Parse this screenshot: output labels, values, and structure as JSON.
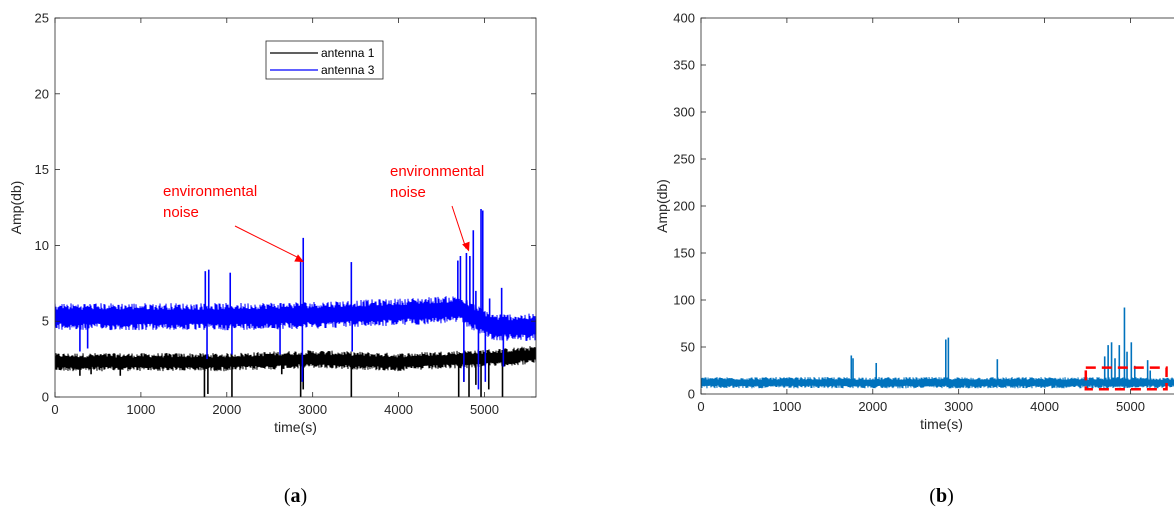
{
  "chart_data": [
    {
      "type": "line",
      "panel_label": "(a)",
      "xlabel": "time(s)",
      "ylabel": "Amp(db)",
      "xlim": [
        0,
        5600
      ],
      "ylim": [
        0,
        25
      ],
      "xticks": [
        0,
        1000,
        2000,
        3000,
        4000,
        5000
      ],
      "yticks": [
        0,
        5,
        10,
        15,
        20,
        25
      ],
      "legend_position": "top-center",
      "series": [
        {
          "name": "antenna 1",
          "color": "#000000",
          "baseline": [
            [
              0,
              2.3
            ],
            [
              2000,
              2.3
            ],
            [
              3000,
              2.5
            ],
            [
              4000,
              2.3
            ],
            [
              5200,
              2.6
            ],
            [
              5600,
              2.8
            ]
          ],
          "noise_band": 0.6,
          "spikes": [
            {
              "x": 290,
              "y": 1.4
            },
            {
              "x": 420,
              "y": 1.5
            },
            {
              "x": 760,
              "y": 1.4
            },
            {
              "x": 1740,
              "y": 0.0
            },
            {
              "x": 1780,
              "y": 0.2
            },
            {
              "x": 2060,
              "y": 0.0
            },
            {
              "x": 2640,
              "y": 1.5
            },
            {
              "x": 2860,
              "y": 0.0
            },
            {
              "x": 2890,
              "y": 0.5
            },
            {
              "x": 3450,
              "y": 0.0
            },
            {
              "x": 4700,
              "y": 0.0
            },
            {
              "x": 4760,
              "y": 1.0
            },
            {
              "x": 4820,
              "y": 0.0
            },
            {
              "x": 4900,
              "y": 0.8
            },
            {
              "x": 4960,
              "y": 0.0
            },
            {
              "x": 5050,
              "y": 0.5
            },
            {
              "x": 5210,
              "y": 0.0
            }
          ]
        },
        {
          "name": "antenna 3",
          "color": "#0000ff",
          "baseline": [
            [
              0,
              5.3
            ],
            [
              2000,
              5.3
            ],
            [
              3000,
              5.4
            ],
            [
              4000,
              5.6
            ],
            [
              4700,
              5.8
            ],
            [
              5100,
              4.6
            ],
            [
              5600,
              4.6
            ]
          ],
          "noise_band": 0.9,
          "spikes": [
            {
              "x": 290,
              "y": 3.0
            },
            {
              "x": 380,
              "y": 3.2
            },
            {
              "x": 1750,
              "y": 8.3
            },
            {
              "x": 1790,
              "y": 8.4
            },
            {
              "x": 1770,
              "y": 2.5
            },
            {
              "x": 2040,
              "y": 8.2
            },
            {
              "x": 2060,
              "y": 2.8
            },
            {
              "x": 2620,
              "y": 2.8
            },
            {
              "x": 2860,
              "y": 9.0
            },
            {
              "x": 2890,
              "y": 10.5
            },
            {
              "x": 2880,
              "y": 1.0
            },
            {
              "x": 3450,
              "y": 8.9
            },
            {
              "x": 3460,
              "y": 3.0
            },
            {
              "x": 4690,
              "y": 9.0
            },
            {
              "x": 4720,
              "y": 9.3
            },
            {
              "x": 4760,
              "y": 1.0
            },
            {
              "x": 4790,
              "y": 9.5
            },
            {
              "x": 4830,
              "y": 9.3
            },
            {
              "x": 4870,
              "y": 11.0
            },
            {
              "x": 4900,
              "y": 7.0
            },
            {
              "x": 4930,
              "y": 0.5
            },
            {
              "x": 4960,
              "y": 12.4
            },
            {
              "x": 4980,
              "y": 12.3
            },
            {
              "x": 5010,
              "y": 1.0
            },
            {
              "x": 5060,
              "y": 6.5
            },
            {
              "x": 5200,
              "y": 7.2
            },
            {
              "x": 5220,
              "y": 2.0
            }
          ]
        }
      ],
      "annotations": [
        {
          "text": [
            "environmental",
            "noise"
          ],
          "target": [
            2900,
            8.9
          ]
        },
        {
          "text": [
            "environmental",
            "noise"
          ],
          "target": [
            4820,
            9.6
          ]
        }
      ]
    },
    {
      "type": "line",
      "panel_label": "(b)",
      "xlabel": "time(s)",
      "ylabel": "Amp(db)",
      "xlim": [
        0,
        5600
      ],
      "ylim": [
        0,
        400
      ],
      "xticks": [
        0,
        1000,
        2000,
        3000,
        4000,
        5000
      ],
      "yticks": [
        0,
        50,
        100,
        150,
        200,
        250,
        300,
        350,
        400
      ],
      "series": [
        {
          "color": "#0072bd",
          "baseline": [
            [
              0,
              12
            ],
            [
              5600,
              12
            ]
          ],
          "noise_band": 6,
          "spikes": [
            {
              "x": 1750,
              "y": 41
            },
            {
              "x": 1770,
              "y": 38
            },
            {
              "x": 2040,
              "y": 33
            },
            {
              "x": 2850,
              "y": 58
            },
            {
              "x": 2880,
              "y": 60
            },
            {
              "x": 3450,
              "y": 37
            },
            {
              "x": 4700,
              "y": 40
            },
            {
              "x": 4740,
              "y": 52
            },
            {
              "x": 4780,
              "y": 55
            },
            {
              "x": 4820,
              "y": 38
            },
            {
              "x": 4870,
              "y": 52
            },
            {
              "x": 4930,
              "y": 92
            },
            {
              "x": 4960,
              "y": 45
            },
            {
              "x": 5010,
              "y": 55
            },
            {
              "x": 5050,
              "y": 30
            },
            {
              "x": 5200,
              "y": 36
            },
            {
              "x": 5230,
              "y": 25
            }
          ]
        }
      ],
      "highlight_box": {
        "x": [
          4480,
          5420
        ],
        "y": [
          5,
          28
        ],
        "color": "#ff0000"
      }
    }
  ]
}
